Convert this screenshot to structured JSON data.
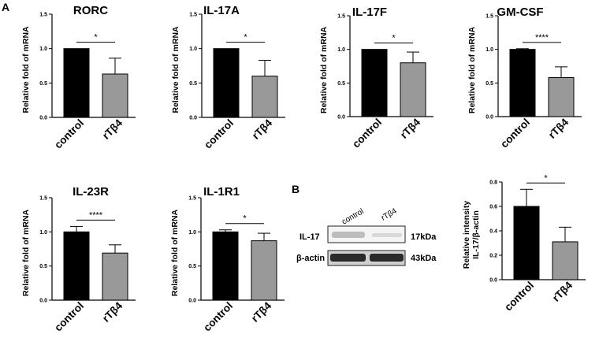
{
  "figure": {
    "panel_labels": [
      "A",
      "B"
    ],
    "bar_colors": {
      "control": "#000000",
      "rTβ4": "#999999"
    }
  },
  "blot": {
    "lanes": [
      "control",
      "rTβ4"
    ],
    "rows": [
      {
        "protein": "IL-17",
        "kda": "17kDa"
      },
      {
        "protein": "β-actin",
        "kda": "43kDa"
      }
    ]
  },
  "chart_data": [
    {
      "type": "bar",
      "title": "RORC",
      "ylabel": "Relative fold of mRNA",
      "categories": [
        "control",
        "rTβ4"
      ],
      "values": [
        1.0,
        0.63
      ],
      "errors": [
        0.0,
        0.23
      ],
      "ylim": [
        0,
        1.5
      ],
      "yticks": [
        "0.0",
        "0.5",
        "1.0",
        "1.5"
      ],
      "significance": "*"
    },
    {
      "type": "bar",
      "title": "IL-17A",
      "ylabel": "Relative fold of mRNA",
      "categories": [
        "control",
        "rTβ4"
      ],
      "values": [
        1.0,
        0.6
      ],
      "errors": [
        0.0,
        0.23
      ],
      "ylim": [
        0,
        1.5
      ],
      "yticks": [
        "0.0",
        "0.5",
        "1.0",
        "1.5"
      ],
      "significance": "*"
    },
    {
      "type": "bar",
      "title": "IL-17F",
      "ylabel": "Relative fold of mRNA",
      "categories": [
        "control",
        "rTβ4"
      ],
      "values": [
        1.0,
        0.8
      ],
      "errors": [
        0.0,
        0.16
      ],
      "ylim": [
        0,
        1.5
      ],
      "yticks": [
        "0.0",
        "0.5",
        "1.0",
        "1.5"
      ],
      "significance": "*"
    },
    {
      "type": "bar",
      "title": "GM-CSF",
      "ylabel": "Relative fold of mRNA",
      "categories": [
        "control",
        "rTβ4"
      ],
      "values": [
        1.0,
        0.58
      ],
      "errors": [
        0.01,
        0.16
      ],
      "ylim": [
        0,
        1.5
      ],
      "yticks": [
        "0.0",
        "0.5",
        "1.0",
        "1.5"
      ],
      "significance": "****"
    },
    {
      "type": "bar",
      "title": "IL-23R",
      "ylabel": "Relative fold of mRNA",
      "categories": [
        "control",
        "rTβ4"
      ],
      "values": [
        1.0,
        0.69
      ],
      "errors": [
        0.08,
        0.12
      ],
      "ylim": [
        0,
        1.5
      ],
      "yticks": [
        "0.0",
        "0.5",
        "1.0",
        "1.5"
      ],
      "significance": "****"
    },
    {
      "type": "bar",
      "title": "IL-1R1",
      "ylabel": "Relative fold of mRNA",
      "categories": [
        "control",
        "rTβ4"
      ],
      "values": [
        1.0,
        0.87
      ],
      "errors": [
        0.03,
        0.11
      ],
      "ylim": [
        0,
        1.5
      ],
      "yticks": [
        "0.0",
        "0.5",
        "1.0",
        "1.5"
      ],
      "significance": "*"
    },
    {
      "type": "bar",
      "title": "",
      "ylabel": "Relative intensity\nIL-17/β-actin",
      "categories": [
        "control",
        "rTβ4"
      ],
      "values": [
        0.6,
        0.31
      ],
      "errors": [
        0.14,
        0.12
      ],
      "ylim": [
        0,
        0.8
      ],
      "yticks": [
        "0.0",
        "0.2",
        "0.4",
        "0.6",
        "0.8"
      ],
      "significance": "*"
    }
  ]
}
